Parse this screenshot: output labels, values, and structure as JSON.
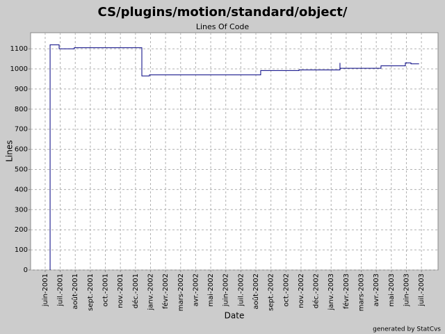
{
  "chart_data": {
    "type": "line",
    "step": "post",
    "title": "CS/plugins/motion/standard/object/",
    "subtitle": "Lines Of Code",
    "x_label": "Date",
    "y_label": "Lines",
    "footer": "generated by StatCvs",
    "x": [
      2001.444,
      2001.444,
      2001.494,
      2001.578,
      2001.952,
      2001.994,
      2002.61,
      2002.822,
      2003.049,
      2003.049,
      2003.276,
      2003.411,
      2003.442,
      2003.487
    ],
    "series": [
      {
        "color": "#000080",
        "values": [
          0,
          1120,
          1100,
          1105,
          965,
          970,
          992,
          995,
          1030,
          1003,
          1015,
          1030,
          1025,
          1025
        ]
      }
    ],
    "xlim": [
      2001.336,
      2003.592
    ],
    "ylim": [
      0,
      1180
    ],
    "yticks": [
      0,
      100,
      200,
      300,
      400,
      500,
      600,
      700,
      800,
      900,
      1000,
      1100
    ],
    "xticks": [
      {
        "value": 2001.4167,
        "label": "juin-2001"
      },
      {
        "value": 2001.5,
        "label": "juil.-2001"
      },
      {
        "value": 2001.5833,
        "label": "août-2001"
      },
      {
        "value": 2001.6667,
        "label": "sept.-2001"
      },
      {
        "value": 2001.75,
        "label": "oct.-2001"
      },
      {
        "value": 2001.8333,
        "label": "nov.-2001"
      },
      {
        "value": 2001.9167,
        "label": "déc.-2001"
      },
      {
        "value": 2002.0,
        "label": "janv.-2002"
      },
      {
        "value": 2002.0833,
        "label": "févr.-2002"
      },
      {
        "value": 2002.1667,
        "label": "mars-2002"
      },
      {
        "value": 2002.25,
        "label": "avr.-2002"
      },
      {
        "value": 2002.3333,
        "label": "mai-2002"
      },
      {
        "value": 2002.4167,
        "label": "juin-2002"
      },
      {
        "value": 2002.5,
        "label": "juil.-2002"
      },
      {
        "value": 2002.5833,
        "label": "août-2002"
      },
      {
        "value": 2002.6667,
        "label": "sept.-2002"
      },
      {
        "value": 2002.75,
        "label": "oct.-2002"
      },
      {
        "value": 2002.8333,
        "label": "nov.-2002"
      },
      {
        "value": 2002.9167,
        "label": "déc.-2002"
      },
      {
        "value": 2003.0,
        "label": "janv.-2003"
      },
      {
        "value": 2003.0833,
        "label": "févr.-2003"
      },
      {
        "value": 2003.1667,
        "label": "mars-2003"
      },
      {
        "value": 2003.25,
        "label": "avr.-2003"
      },
      {
        "value": 2003.3333,
        "label": "mai-2003"
      },
      {
        "value": 2003.4167,
        "label": "juin-2003"
      },
      {
        "value": 2003.5,
        "label": "juil.-2003"
      }
    ],
    "grid": true
  }
}
